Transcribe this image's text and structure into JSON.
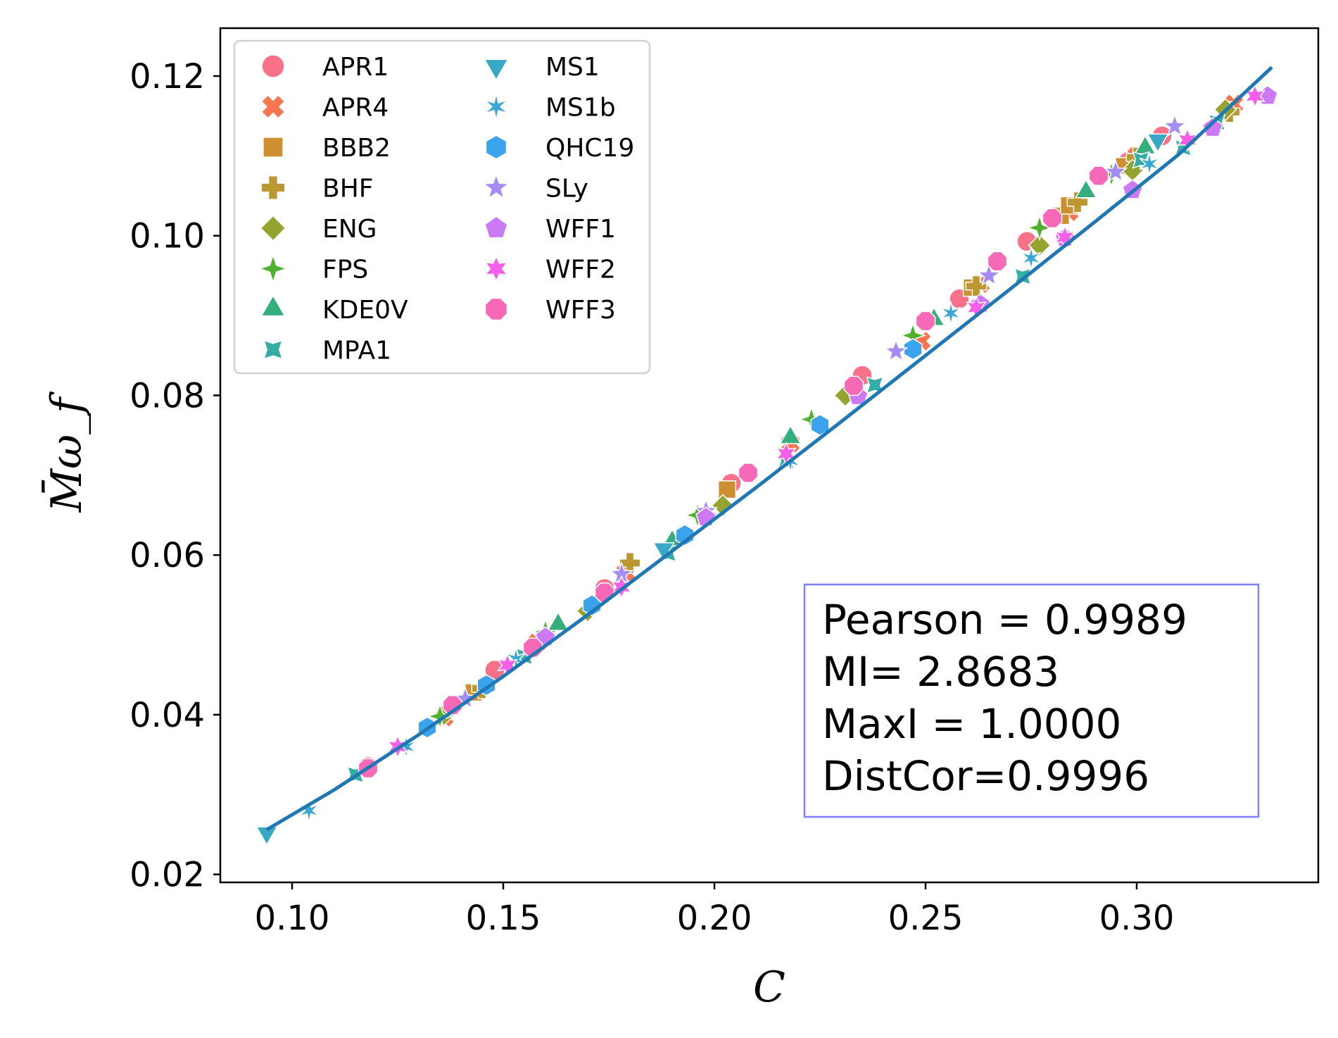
{
  "chart_data": {
    "type": "scatter",
    "xlabel": "C",
    "ylabel": "M̄ω_f",
    "xlim": [
      0.083,
      0.343
    ],
    "ylim": [
      0.019,
      0.126
    ],
    "xticks": [
      "0.10",
      "0.15",
      "0.20",
      "0.25",
      "0.30"
    ],
    "yticks": [
      "0.02",
      "0.04",
      "0.06",
      "0.08",
      "0.10",
      "0.12"
    ],
    "legend_position": "top-left",
    "grid": false,
    "fit_line": {
      "color": "#1f77b4",
      "x": [
        0.094,
        0.11,
        0.13,
        0.15,
        0.17,
        0.19,
        0.21,
        0.23,
        0.25,
        0.27,
        0.29,
        0.31,
        0.332
      ],
      "y": [
        0.0256,
        0.0306,
        0.0375,
        0.0448,
        0.0525,
        0.0605,
        0.0685,
        0.0767,
        0.085,
        0.0933,
        0.1017,
        0.1102,
        0.1211
      ]
    },
    "stats_box": {
      "lines": [
        "Pearson = 0.9989",
        "MI= 2.8683",
        "MaxI = 1.0000",
        "DistCor=0.9996"
      ],
      "border_color": "#8080ff"
    },
    "series": [
      {
        "name": "APR1",
        "marker": "circle",
        "color": "#f77189",
        "points": [
          [
            0.118,
            0.0335
          ],
          [
            0.148,
            0.0456
          ],
          [
            0.174,
            0.0558
          ],
          [
            0.204,
            0.069
          ],
          [
            0.235,
            0.0825
          ],
          [
            0.258,
            0.0921
          ],
          [
            0.274,
            0.0993
          ],
          [
            0.298,
            0.1093
          ],
          [
            0.306,
            0.1125
          ]
        ]
      },
      {
        "name": "APR4",
        "marker": "x",
        "color": "#f7754f",
        "points": [
          [
            0.136,
            0.0397
          ],
          [
            0.158,
            0.049
          ],
          [
            0.179,
            0.0578
          ],
          [
            0.218,
            0.074
          ],
          [
            0.249,
            0.0868
          ],
          [
            0.263,
            0.094
          ],
          [
            0.284,
            0.103
          ],
          [
            0.3,
            0.11
          ],
          [
            0.323,
            0.1165
          ]
        ]
      },
      {
        "name": "BBB2",
        "marker": "square",
        "color": "#ce8f31",
        "points": [
          [
            0.143,
            0.0428
          ],
          [
            0.203,
            0.0682
          ],
          [
            0.261,
            0.0935
          ],
          [
            0.282,
            0.1025
          ],
          [
            0.284,
            0.1038
          ],
          [
            0.297,
            0.1087
          ]
        ]
      },
      {
        "name": "BHF",
        "marker": "plus",
        "color": "#bb9832",
        "points": [
          [
            0.145,
            0.0433
          ],
          [
            0.18,
            0.059
          ],
          [
            0.262,
            0.0937
          ],
          [
            0.286,
            0.1042
          ],
          [
            0.3,
            0.1098
          ],
          [
            0.322,
            0.1155
          ]
        ]
      },
      {
        "name": "ENG",
        "marker": "diamond",
        "color": "#96a331",
        "points": [
          [
            0.136,
            0.04
          ],
          [
            0.17,
            0.053
          ],
          [
            0.202,
            0.0662
          ],
          [
            0.231,
            0.08
          ],
          [
            0.277,
            0.0988
          ],
          [
            0.299,
            0.1082
          ],
          [
            0.321,
            0.1158
          ]
        ]
      },
      {
        "name": "FPS",
        "marker": "star4",
        "color": "#50b131",
        "points": [
          [
            0.135,
            0.0398
          ],
          [
            0.16,
            0.0504
          ],
          [
            0.196,
            0.065
          ],
          [
            0.223,
            0.077
          ],
          [
            0.247,
            0.0875
          ],
          [
            0.277,
            0.101
          ],
          [
            0.294,
            0.1077
          ]
        ]
      },
      {
        "name": "KDE0V",
        "marker": "triangle",
        "color": "#34ae7d",
        "points": [
          [
            0.163,
            0.0513
          ],
          [
            0.19,
            0.0617
          ],
          [
            0.218,
            0.0747
          ],
          [
            0.252,
            0.0895
          ],
          [
            0.288,
            0.1055
          ],
          [
            0.302,
            0.111
          ]
        ]
      },
      {
        "name": "MPA1",
        "marker": "star4c",
        "color": "#36ada4",
        "points": [
          [
            0.115,
            0.0325
          ],
          [
            0.155,
            0.0473
          ],
          [
            0.189,
            0.0602
          ],
          [
            0.217,
            0.0718
          ],
          [
            0.238,
            0.0813
          ],
          [
            0.273,
            0.0949
          ],
          [
            0.301,
            0.1095
          ],
          [
            0.311,
            0.111
          ],
          [
            0.319,
            0.1142
          ]
        ]
      },
      {
        "name": "MS1",
        "marker": "triangle-down",
        "color": "#38a9c5",
        "points": [
          [
            0.094,
            0.0252
          ],
          [
            0.188,
            0.0608
          ],
          [
            0.305,
            0.112
          ]
        ]
      },
      {
        "name": "MS1b",
        "marker": "asterisk",
        "color": "#39a7d0",
        "points": [
          [
            0.104,
            0.028
          ],
          [
            0.127,
            0.036
          ],
          [
            0.153,
            0.047
          ],
          [
            0.193,
            0.0625
          ],
          [
            0.218,
            0.0718
          ],
          [
            0.256,
            0.0903
          ],
          [
            0.275,
            0.0972
          ],
          [
            0.303,
            0.109
          ]
        ]
      },
      {
        "name": "QHC19",
        "marker": "hexagon",
        "color": "#3ba3ec",
        "points": [
          [
            0.132,
            0.0384
          ],
          [
            0.146,
            0.0437
          ],
          [
            0.171,
            0.0537
          ],
          [
            0.193,
            0.0625
          ],
          [
            0.225,
            0.0763
          ],
          [
            0.247,
            0.0858
          ]
        ]
      },
      {
        "name": "SLy",
        "marker": "star5",
        "color": "#a48cf4",
        "points": [
          [
            0.141,
            0.042
          ],
          [
            0.178,
            0.0576
          ],
          [
            0.198,
            0.0655
          ],
          [
            0.243,
            0.0855
          ],
          [
            0.265,
            0.095
          ],
          [
            0.295,
            0.108
          ],
          [
            0.309,
            0.1137
          ]
        ]
      },
      {
        "name": "WFF1",
        "marker": "pentagon",
        "color": "#cc7af4",
        "points": [
          [
            0.16,
            0.0497
          ],
          [
            0.198,
            0.0647
          ],
          [
            0.234,
            0.0799
          ],
          [
            0.263,
            0.0914
          ],
          [
            0.283,
            0.0997
          ],
          [
            0.299,
            0.1057
          ],
          [
            0.318,
            0.1135
          ],
          [
            0.331,
            0.1175
          ]
        ]
      },
      {
        "name": "WFF2",
        "marker": "star6",
        "color": "#f45fe8",
        "points": [
          [
            0.125,
            0.036
          ],
          [
            0.151,
            0.0462
          ],
          [
            0.178,
            0.056
          ],
          [
            0.217,
            0.0727
          ],
          [
            0.262,
            0.091
          ],
          [
            0.283,
            0.0998
          ],
          [
            0.312,
            0.112
          ],
          [
            0.328,
            0.1175
          ]
        ]
      },
      {
        "name": "WFF3",
        "marker": "octagon",
        "color": "#f669b7",
        "points": [
          [
            0.118,
            0.0333
          ],
          [
            0.138,
            0.0412
          ],
          [
            0.157,
            0.0484
          ],
          [
            0.174,
            0.0553
          ],
          [
            0.208,
            0.0703
          ],
          [
            0.233,
            0.0812
          ],
          [
            0.25,
            0.0893
          ],
          [
            0.267,
            0.0968
          ],
          [
            0.28,
            0.1022
          ],
          [
            0.291,
            0.1075
          ]
        ]
      }
    ]
  }
}
